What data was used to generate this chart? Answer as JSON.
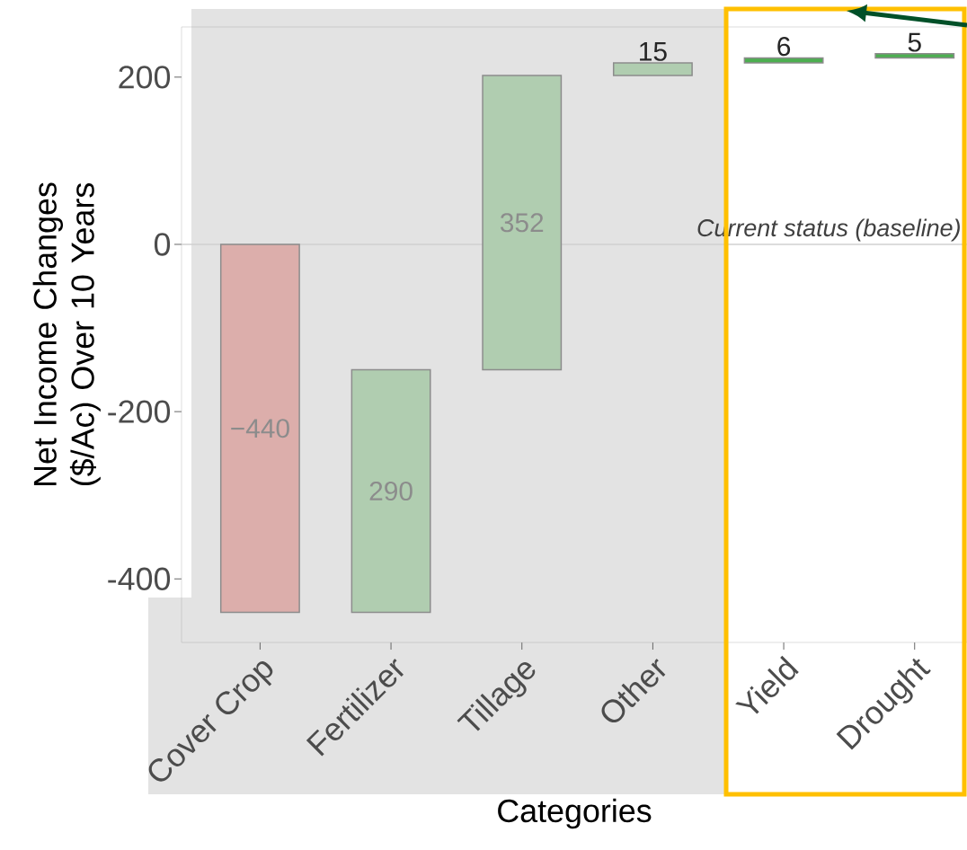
{
  "chart_data": {
    "type": "bar",
    "xlabel": "Categories",
    "ylabel": "Net Income Changes ($/Ac) Over 10 Years",
    "categories": [
      "Cover Crop",
      "Fertilizer",
      "Tillage",
      "Other",
      "Yield",
      "Drought"
    ],
    "values": [
      -440,
      290,
      352,
      15,
      6,
      5
    ],
    "base": [
      0,
      -440,
      -150,
      202,
      217,
      223
    ],
    "colors": [
      "#dcaeab",
      "#b0cdb0",
      "#b0cdb0",
      "#b0cdb0",
      "#4caf50",
      "#4caf50"
    ],
    "value_labels": [
      "−440",
      "290",
      "352",
      "15",
      "6",
      "5"
    ],
    "ylim": [
      -476,
      260
    ],
    "yticks": [
      -400,
      -200,
      0,
      200
    ],
    "ref_lines": [
      {
        "axis": "y",
        "value": 0,
        "label": "Current status (baseline)",
        "color": "#d0d0d0"
      }
    ],
    "grid": false
  }
}
